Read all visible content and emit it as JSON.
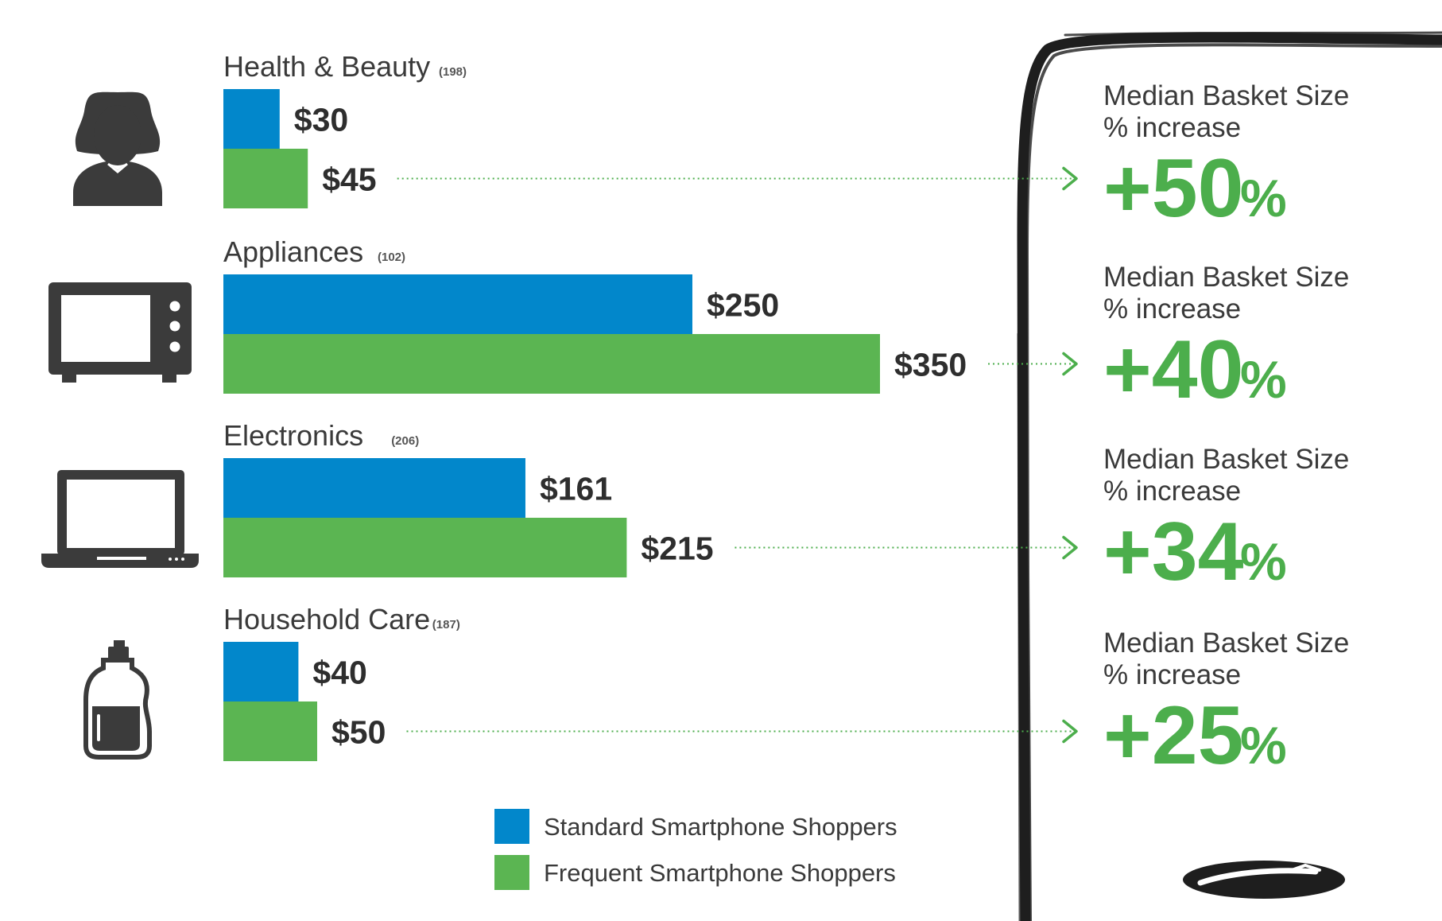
{
  "chart_data": {
    "type": "bar",
    "orientation": "horizontal",
    "categories": [
      "Health & Beauty",
      "Appliances",
      "Electronics",
      "Household Care"
    ],
    "sample_sizes": [
      "(198)",
      "(102)",
      "(206)",
      "(187)"
    ],
    "series": [
      {
        "name": "Standard Smartphone Shoppers",
        "color": "#0287cb",
        "values": [
          30,
          250,
          161,
          40
        ],
        "labels": [
          "$30",
          "$250",
          "$161",
          "$40"
        ]
      },
      {
        "name": "Frequent Smartphone Shoppers",
        "color": "#5bb552",
        "values": [
          45,
          350,
          215,
          50
        ],
        "labels": [
          "$45",
          "$350",
          "$215",
          "$50"
        ]
      }
    ],
    "increase": {
      "heading_line1": "Median Basket Size",
      "heading_line2": "% increase",
      "values": [
        "+50",
        "+40",
        "+34",
        "+25"
      ],
      "unit": "%"
    },
    "icons": [
      "woman-icon",
      "microwave-icon",
      "laptop-icon",
      "detergent-bottle-icon"
    ],
    "legend_position": "bottom-center",
    "grid": false
  }
}
